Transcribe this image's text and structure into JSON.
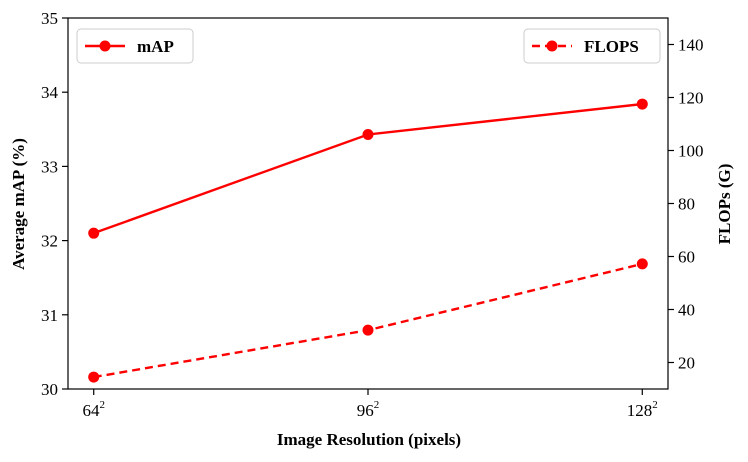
{
  "chart_data": {
    "type": "line",
    "title": "",
    "xlabel": "Image Resolution (pixels)",
    "ylabel": "Average mAP (%)",
    "y2label": "FLOPs (G)",
    "categories": [
      {
        "base": "64",
        "exp": "2"
      },
      {
        "base": "96",
        "exp": "2"
      },
      {
        "base": "128",
        "exp": "2"
      }
    ],
    "x": [
      64,
      96,
      128
    ],
    "xlim": [
      61,
      131
    ],
    "ylim": [
      30,
      35
    ],
    "y2lim": [
      10,
      150
    ],
    "yticks": [
      "30",
      "31",
      "32",
      "33",
      "34",
      "35"
    ],
    "y2ticks": [
      "20",
      "40",
      "60",
      "80",
      "100",
      "120",
      "140"
    ],
    "series": [
      {
        "name": "mAP",
        "axis": "left",
        "style": "solid",
        "color": "#ff0000",
        "values": [
          32.1,
          33.43,
          33.84
        ]
      },
      {
        "name": "FLOPS",
        "axis": "right",
        "style": "dashed",
        "color": "#ff0000",
        "values": [
          14.5,
          32.2,
          57.2
        ]
      }
    ],
    "legend": {
      "mAP": "top-left",
      "FLOPS": "top-right"
    },
    "grid": false
  }
}
